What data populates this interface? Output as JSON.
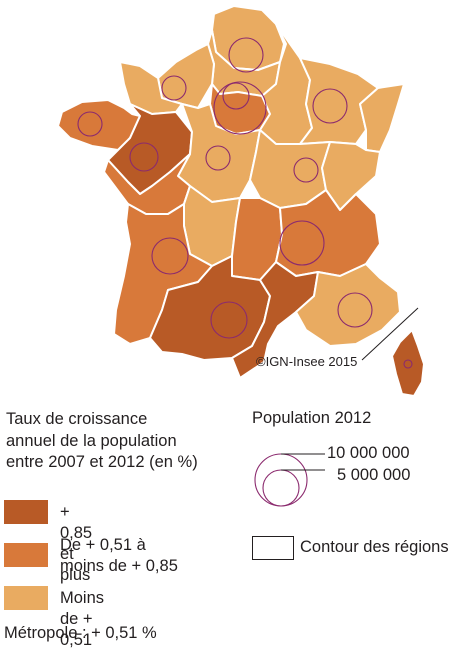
{
  "colors": {
    "high": "#b85a26",
    "medium": "#d8793a",
    "low": "#e9ab61",
    "circle": "#8b2a6e",
    "border": "#ffffff"
  },
  "copyright": "©IGN-Insee 2015",
  "legend": {
    "title_lines": [
      "Taux de croissance",
      "annuel de la population",
      "entre 2007 et 2012 (en %)"
    ],
    "classes": [
      {
        "key": "high",
        "lines": [
          "+ 0,85 et plus"
        ]
      },
      {
        "key": "medium",
        "lines": [
          "De + 0,51 à",
          "moins de + 0,85"
        ]
      },
      {
        "key": "low",
        "lines": [
          "Moins de + 0,51"
        ]
      }
    ]
  },
  "population_legend": {
    "title": "Population 2012",
    "sizes": [
      {
        "label": "10 000 000",
        "value": 10000000
      },
      {
        "label": "5 000 000",
        "value": 5000000
      }
    ]
  },
  "contour_label": "Contour des régions",
  "metropole": "Métropole : + 0,51 %",
  "regions": [
    {
      "name": "Nord-Pas-de-Calais",
      "class": "low"
    },
    {
      "name": "Picardie",
      "class": "low"
    },
    {
      "name": "Haute-Normandie",
      "class": "low"
    },
    {
      "name": "Basse-Normandie",
      "class": "low"
    },
    {
      "name": "Île-de-France",
      "class": "medium"
    },
    {
      "name": "Champagne-Ardenne",
      "class": "low"
    },
    {
      "name": "Lorraine",
      "class": "low"
    },
    {
      "name": "Alsace",
      "class": "low"
    },
    {
      "name": "Bretagne",
      "class": "medium"
    },
    {
      "name": "Pays de la Loire",
      "class": "high"
    },
    {
      "name": "Centre",
      "class": "low"
    },
    {
      "name": "Bourgogne",
      "class": "low"
    },
    {
      "name": "Franche-Comté",
      "class": "low"
    },
    {
      "name": "Poitou-Charentes",
      "class": "medium"
    },
    {
      "name": "Limousin",
      "class": "low"
    },
    {
      "name": "Auvergne",
      "class": "medium"
    },
    {
      "name": "Rhône-Alpes",
      "class": "medium"
    },
    {
      "name": "Aquitaine",
      "class": "medium"
    },
    {
      "name": "Midi-Pyrénées",
      "class": "high"
    },
    {
      "name": "Languedoc-Roussillon",
      "class": "high"
    },
    {
      "name": "Provence-Alpes-Côte d'Azur",
      "class": "low"
    },
    {
      "name": "Corse",
      "class": "high"
    }
  ]
}
